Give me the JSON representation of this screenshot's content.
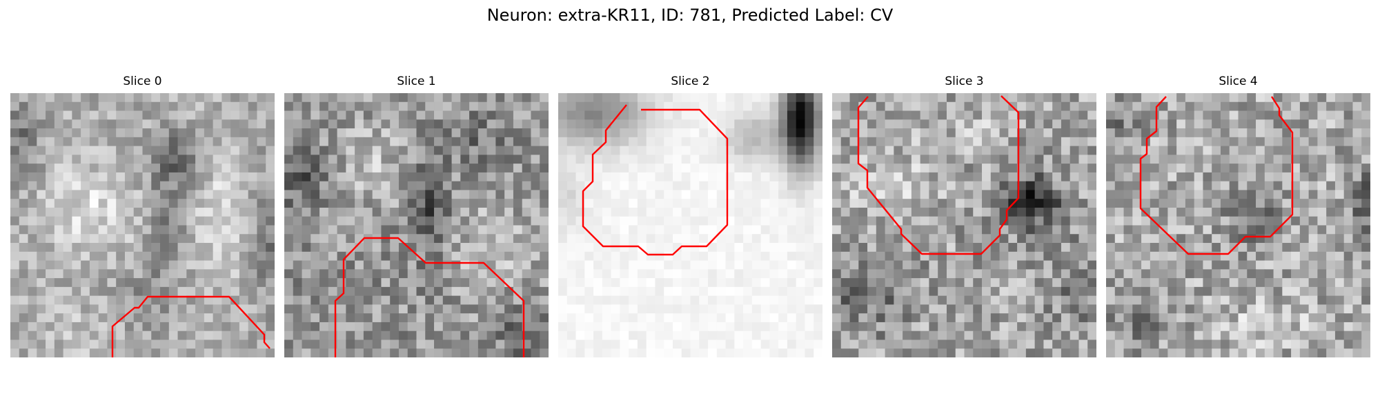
{
  "figure": {
    "title": "Neuron: extra-KR11, ID: 781, Predicted Label: CV"
  },
  "slices": [
    {
      "title": "Slice 0"
    },
    {
      "title": "Slice 1"
    },
    {
      "title": "Slice 2"
    },
    {
      "title": "Slice 3"
    },
    {
      "title": "Slice 4"
    }
  ],
  "colors": {
    "contour": "#ff0000",
    "background": "#ffffff"
  }
}
